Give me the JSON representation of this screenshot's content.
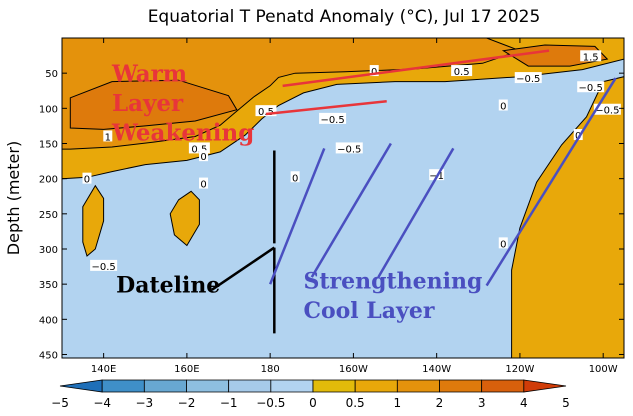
{
  "chart_data": {
    "type": "heatmap",
    "title": "Equatorial T Penatd Anomaly (°C), Jul 17 2025",
    "xlabel": "",
    "ylabel": "Depth (meter)",
    "x_range": [
      130,
      265
    ],
    "y_range": [
      455,
      0
    ],
    "x_ticks": [
      {
        "value": 140,
        "label": "140E"
      },
      {
        "value": 160,
        "label": "160E"
      },
      {
        "value": 180,
        "label": "180"
      },
      {
        "value": 200,
        "label": "160W"
      },
      {
        "value": 220,
        "label": "140W"
      },
      {
        "value": 240,
        "label": "120W"
      },
      {
        "value": 260,
        "label": "100W"
      }
    ],
    "y_ticks": [
      50,
      100,
      150,
      200,
      250,
      300,
      350,
      400,
      450
    ],
    "colorbar": {
      "levels": [
        -5,
        -4,
        -3,
        -2,
        -1,
        -0.5,
        0,
        0.5,
        1,
        2,
        3,
        4,
        5
      ],
      "labels": [
        "−5",
        "−4",
        "−3",
        "−2",
        "−1",
        "−0.5",
        "0",
        "0.5",
        "1",
        "2",
        "3",
        "4",
        "5"
      ],
      "colors": [
        "#1f6fb8",
        "#3f8fc8",
        "#68a8d2",
        "#8ebfe0",
        "#a6cae9",
        "#b2d3f0",
        "#e2bb0a",
        "#e8a80a",
        "#e4920c",
        "#de7a0c",
        "#d8600c",
        "#d03c08"
      ]
    },
    "regions": [
      {
        "level": 0.5,
        "points": [
          [
            130,
            0
          ],
          [
            265,
            0
          ],
          [
            265,
            30
          ],
          [
            255,
            45
          ],
          [
            240,
            55
          ],
          [
            222,
            62
          ],
          [
            210,
            62
          ],
          [
            196,
            66
          ],
          [
            188,
            78
          ],
          [
            182,
            96
          ],
          [
            178,
            115
          ],
          [
            174,
            138
          ],
          [
            168,
            162
          ],
          [
            160,
            174
          ],
          [
            150,
            180
          ],
          [
            142,
            190
          ],
          [
            136,
            198
          ],
          [
            130,
            200
          ]
        ]
      },
      {
        "level": 0.5,
        "points": [
          [
            260,
            62
          ],
          [
            265,
            55
          ],
          [
            265,
            455
          ],
          [
            238,
            455
          ],
          [
            238,
            330
          ],
          [
            240,
            270
          ],
          [
            244,
            205
          ],
          [
            250,
            152
          ],
          [
            256,
            112
          ]
        ]
      },
      {
        "level": 0.5,
        "points": [
          [
            158,
            230
          ],
          [
            161,
            218
          ],
          [
            163,
            230
          ],
          [
            163,
            265
          ],
          [
            160,
            295
          ],
          [
            157,
            280
          ],
          [
            156,
            250
          ]
        ]
      },
      {
        "level": 0.5,
        "points": [
          [
            138,
            210
          ],
          [
            140,
            228
          ],
          [
            140,
            260
          ],
          [
            138,
            300
          ],
          [
            136,
            310
          ],
          [
            135,
            290
          ],
          [
            135,
            240
          ]
        ]
      },
      {
        "level": 1,
        "points": [
          [
            130,
            0
          ],
          [
            232,
            0
          ],
          [
            240,
            18
          ],
          [
            231,
            36
          ],
          [
            215,
            44
          ],
          [
            198,
            48
          ],
          [
            186,
            50
          ],
          [
            182,
            56
          ],
          [
            180,
            68
          ],
          [
            176,
            84
          ],
          [
            172,
            104
          ],
          [
            168,
            124
          ],
          [
            162,
            140
          ],
          [
            152,
            148
          ],
          [
            142,
            155
          ],
          [
            132,
            158
          ],
          [
            130,
            158
          ]
        ]
      },
      {
        "level": 2,
        "points": [
          [
            132,
            85
          ],
          [
            142,
            62
          ],
          [
            158,
            60
          ],
          [
            170,
            82
          ],
          [
            172,
            102
          ],
          [
            162,
            118
          ],
          [
            150,
            125
          ],
          [
            140,
            130
          ],
          [
            132,
            128
          ]
        ]
      },
      {
        "level": 2,
        "points": [
          [
            236,
            18
          ],
          [
            246,
            10
          ],
          [
            258,
            12
          ],
          [
            261,
            30
          ],
          [
            252,
            40
          ],
          [
            242,
            40
          ]
        ]
      }
    ],
    "contour_labels": [
      {
        "x": 205,
        "y": 47,
        "text": "0"
      },
      {
        "x": 226,
        "y": 47,
        "text": "0.5"
      },
      {
        "x": 242,
        "y": 57,
        "text": "−0.5"
      },
      {
        "x": 257,
        "y": 70,
        "text": "−0.5"
      },
      {
        "x": 257,
        "y": 26,
        "text": "1.5"
      },
      {
        "x": 236,
        "y": 96,
        "text": "0"
      },
      {
        "x": 179,
        "y": 104,
        "text": "0.5"
      },
      {
        "x": 195,
        "y": 115,
        "text": "−0.5"
      },
      {
        "x": 199,
        "y": 157,
        "text": "−0.5"
      },
      {
        "x": 220,
        "y": 195,
        "text": "−1"
      },
      {
        "x": 254,
        "y": 138,
        "text": "0"
      },
      {
        "x": 261,
        "y": 102,
        "text": "−0.5"
      },
      {
        "x": 186,
        "y": 198,
        "text": "0"
      },
      {
        "x": 164,
        "y": 207,
        "text": "0"
      },
      {
        "x": 140,
        "y": 324,
        "text": "−0.5"
      },
      {
        "x": 163,
        "y": 157,
        "text": "0.5"
      },
      {
        "x": 164,
        "y": 168,
        "text": "0"
      },
      {
        "x": 141,
        "y": 140,
        "text": "1"
      },
      {
        "x": 236,
        "y": 292,
        "text": "0"
      },
      {
        "x": 136,
        "y": 200,
        "text": "0"
      }
    ],
    "annotations": [
      {
        "text": "Warm",
        "x": 142,
        "y": 62,
        "style": "warm"
      },
      {
        "text": "Layer",
        "x": 142,
        "y": 104,
        "style": "warm"
      },
      {
        "text": "Weakening",
        "x": 142,
        "y": 146,
        "style": "warm"
      },
      {
        "text": "Dateline",
        "x": 143,
        "y": 362,
        "style": "date"
      },
      {
        "text": "Strengthening",
        "x": 188,
        "y": 356,
        "style": "cool"
      },
      {
        "text": "Cool Layer",
        "x": 188,
        "y": 398,
        "style": "cool"
      }
    ],
    "annotation_lines": [
      {
        "points": [
          [
            183,
            68
          ],
          [
            247,
            18
          ]
        ],
        "color": "#e8353a"
      },
      {
        "points": [
          [
            179,
            108
          ],
          [
            208,
            90
          ]
        ],
        "color": "#e8353a"
      },
      {
        "points": [
          [
            181,
            160
          ],
          [
            181,
            292
          ]
        ],
        "color": "#000000"
      },
      {
        "points": [
          [
            181,
            298
          ],
          [
            166,
            358
          ]
        ],
        "color": "#000000"
      },
      {
        "points": [
          [
            181,
            298
          ],
          [
            181,
            420
          ]
        ],
        "color": "#000000"
      },
      {
        "points": [
          [
            193,
            157
          ],
          [
            180,
            350
          ]
        ],
        "color": "#4a4fc0"
      },
      {
        "points": [
          [
            209,
            150
          ],
          [
            190,
            340
          ]
        ],
        "color": "#4a4fc0"
      },
      {
        "points": [
          [
            224,
            157
          ],
          [
            206,
            340
          ]
        ],
        "color": "#4a4fc0"
      },
      {
        "points": [
          [
            263,
            57
          ],
          [
            232,
            352
          ]
        ],
        "color": "#4a4fc0"
      }
    ]
  }
}
